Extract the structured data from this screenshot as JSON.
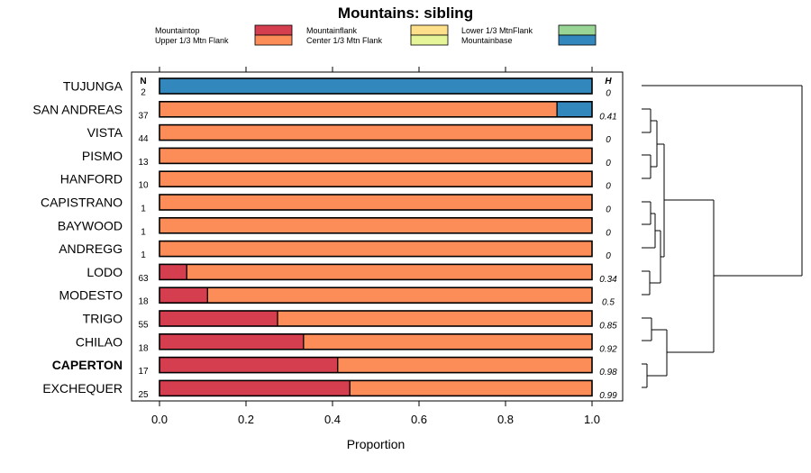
{
  "chart_data": {
    "type": "bar",
    "stacked": true,
    "orientation": "horizontal",
    "title": "Mountains: sibling",
    "xlabel": "Proportion",
    "xlim": [
      0,
      1
    ],
    "xticks": [
      "0.0",
      "0.2",
      "0.4",
      "0.6",
      "0.8",
      "1.0"
    ],
    "n_header": "N",
    "h_header": "H",
    "legend": [
      {
        "label": "Mountaintop",
        "color": "#d53e4f"
      },
      {
        "label": "Upper 1/3 Mtn Flank",
        "color": "#fc8d59"
      },
      {
        "label": "Mountainflank",
        "color": "#fee08b"
      },
      {
        "label": "Center 1/3 Mtn Flank",
        "color": "#e6f598"
      },
      {
        "label": "Lower 1/3 MtnFlank",
        "color": "#99d594"
      },
      {
        "label": "Mountainbase",
        "color": "#3288bd"
      }
    ],
    "rows": [
      {
        "label": "TUJUNGA",
        "n": "2",
        "h": "0",
        "bold": false,
        "segments": [
          {
            "series": "Mountainbase",
            "value": 1.0
          }
        ]
      },
      {
        "label": "SAN ANDREAS",
        "n": "37",
        "h": "0.41",
        "bold": false,
        "segments": [
          {
            "series": "Upper 1/3 Mtn Flank",
            "value": 0.919
          },
          {
            "series": "Mountainbase",
            "value": 0.081
          }
        ]
      },
      {
        "label": "VISTA",
        "n": "44",
        "h": "0",
        "bold": false,
        "segments": [
          {
            "series": "Upper 1/3 Mtn Flank",
            "value": 1.0
          }
        ]
      },
      {
        "label": "PISMO",
        "n": "13",
        "h": "0",
        "bold": false,
        "segments": [
          {
            "series": "Upper 1/3 Mtn Flank",
            "value": 1.0
          }
        ]
      },
      {
        "label": "HANFORD",
        "n": "10",
        "h": "0",
        "bold": false,
        "segments": [
          {
            "series": "Upper 1/3 Mtn Flank",
            "value": 1.0
          }
        ]
      },
      {
        "label": "CAPISTRANO",
        "n": "1",
        "h": "0",
        "bold": false,
        "segments": [
          {
            "series": "Upper 1/3 Mtn Flank",
            "value": 1.0
          }
        ]
      },
      {
        "label": "BAYWOOD",
        "n": "1",
        "h": "0",
        "bold": false,
        "segments": [
          {
            "series": "Upper 1/3 Mtn Flank",
            "value": 1.0
          }
        ]
      },
      {
        "label": "ANDREGG",
        "n": "1",
        "h": "0",
        "bold": false,
        "segments": [
          {
            "series": "Upper 1/3 Mtn Flank",
            "value": 1.0
          }
        ]
      },
      {
        "label": "LODO",
        "n": "63",
        "h": "0.34",
        "bold": false,
        "segments": [
          {
            "series": "Mountaintop",
            "value": 0.063
          },
          {
            "series": "Upper 1/3 Mtn Flank",
            "value": 0.937
          }
        ]
      },
      {
        "label": "MODESTO",
        "n": "18",
        "h": "0.5",
        "bold": false,
        "segments": [
          {
            "series": "Mountaintop",
            "value": 0.111
          },
          {
            "series": "Upper 1/3 Mtn Flank",
            "value": 0.889
          }
        ]
      },
      {
        "label": "TRIGO",
        "n": "55",
        "h": "0.85",
        "bold": false,
        "segments": [
          {
            "series": "Mountaintop",
            "value": 0.273
          },
          {
            "series": "Upper 1/3 Mtn Flank",
            "value": 0.727
          }
        ]
      },
      {
        "label": "CHILAO",
        "n": "18",
        "h": "0.92",
        "bold": false,
        "segments": [
          {
            "series": "Mountaintop",
            "value": 0.333
          },
          {
            "series": "Upper 1/3 Mtn Flank",
            "value": 0.667
          }
        ]
      },
      {
        "label": "CAPERTON",
        "n": "17",
        "h": "0.98",
        "bold": true,
        "segments": [
          {
            "series": "Mountaintop",
            "value": 0.412
          },
          {
            "series": "Upper 1/3 Mtn Flank",
            "value": 0.588
          }
        ]
      },
      {
        "label": "EXCHEQUER",
        "n": "25",
        "h": "0.99",
        "bold": false,
        "segments": [
          {
            "series": "Mountaintop",
            "value": 0.44
          },
          {
            "series": "Upper 1/3 Mtn Flank",
            "value": 0.56
          }
        ]
      }
    ]
  }
}
